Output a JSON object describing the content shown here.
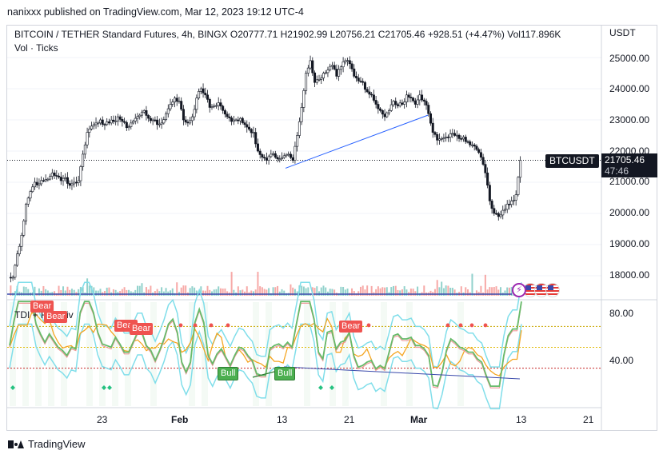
{
  "header": {
    "publisher_line": "nanixxx published on TradingView.com, Mar 12, 2023 19:12 UTC-4"
  },
  "legend": {
    "title": "BITCOIN / TETHER Standard Futures, 4h, BINGX",
    "open": "O20777.71",
    "high": "H21902.99",
    "low": "L20756.21",
    "close": "C21705.46",
    "change": "+928.51 (+4.47%)",
    "volume": "Vol117.896K",
    "sub": "Vol · Ticks"
  },
  "indicator": {
    "label": "TDI + RSI Div"
  },
  "price_axis": {
    "currency": "USDT",
    "labels": [
      "25000.00",
      "24000.00",
      "23000.00",
      "22000.00",
      "21000.00",
      "20000.00",
      "19000.00",
      "18000.00"
    ],
    "indicator_labels": [
      "80.00",
      "40.00"
    ]
  },
  "time_axis": {
    "labels": [
      "23",
      "Feb",
      "13",
      "21",
      "Mar",
      "13",
      "21"
    ]
  },
  "last_price": {
    "symbol": "BTCUSDT",
    "price": "21705.46",
    "countdown": "47:46"
  },
  "badges": {
    "bear": [
      "Bear",
      "Bear",
      "Bear",
      "Bear",
      "Bear"
    ],
    "bull": [
      "Bull",
      "Bull"
    ]
  },
  "icons": [
    "bolt-icon",
    "us-flag-icon",
    "us-flag-icon",
    "us-flag-icon"
  ],
  "footer": {
    "brand": "TradingView"
  },
  "chart_data": {
    "type": "candlestick",
    "title": "BITCOIN / TETHER Standard Futures, 4h, BINGX",
    "ylabel": "USDT",
    "ylim": [
      17200,
      25600
    ],
    "x_tick_labels": [
      "23",
      "Feb",
      "13",
      "21",
      "Mar",
      "13",
      "21"
    ],
    "close_path": [
      17950,
      18700,
      19300,
      20300,
      20700,
      21000,
      20950,
      21050,
      21100,
      21300,
      21200,
      21050,
      21150,
      20900,
      21000,
      21050,
      21900,
      22600,
      22800,
      22900,
      23000,
      22850,
      22900,
      22950,
      23100,
      22950,
      22750,
      22900,
      23050,
      23150,
      23300,
      23050,
      23000,
      22850,
      22900,
      23200,
      23500,
      23700,
      23600,
      23000,
      22900,
      23100,
      23700,
      24000,
      23800,
      23400,
      23450,
      23550,
      23300,
      23100,
      22950,
      23000,
      23050,
      22850,
      22700,
      22600,
      22000,
      21800,
      21700,
      21900,
      21800,
      21750,
      21850,
      21900,
      21700,
      22500,
      23400,
      24500,
      24900,
      24200,
      24300,
      24500,
      24600,
      24750,
      24400,
      24700,
      24900,
      24800,
      24400,
      24250,
      24200,
      23900,
      23800,
      23500,
      23300,
      23100,
      23300,
      23600,
      23450,
      23500,
      23800,
      23700,
      23500,
      23800,
      23600,
      23200,
      22600,
      22350,
      22400,
      22450,
      22550,
      22500,
      22400,
      22450,
      22300,
      22200,
      22050,
      21800,
      21300,
      20400,
      20000,
      19900,
      20100,
      20300,
      20400,
      20600,
      21705
    ],
    "trend_lines": [
      {
        "from": [
          21500,
          0.43
        ],
        "to": [
          23200,
          0.64
        ]
      }
    ],
    "series": [
      {
        "name": "Vol",
        "type": "volume"
      },
      {
        "name": "TDI + RSI Div",
        "type": "oscillator",
        "axis_labels": [
          80,
          40
        ]
      }
    ]
  }
}
